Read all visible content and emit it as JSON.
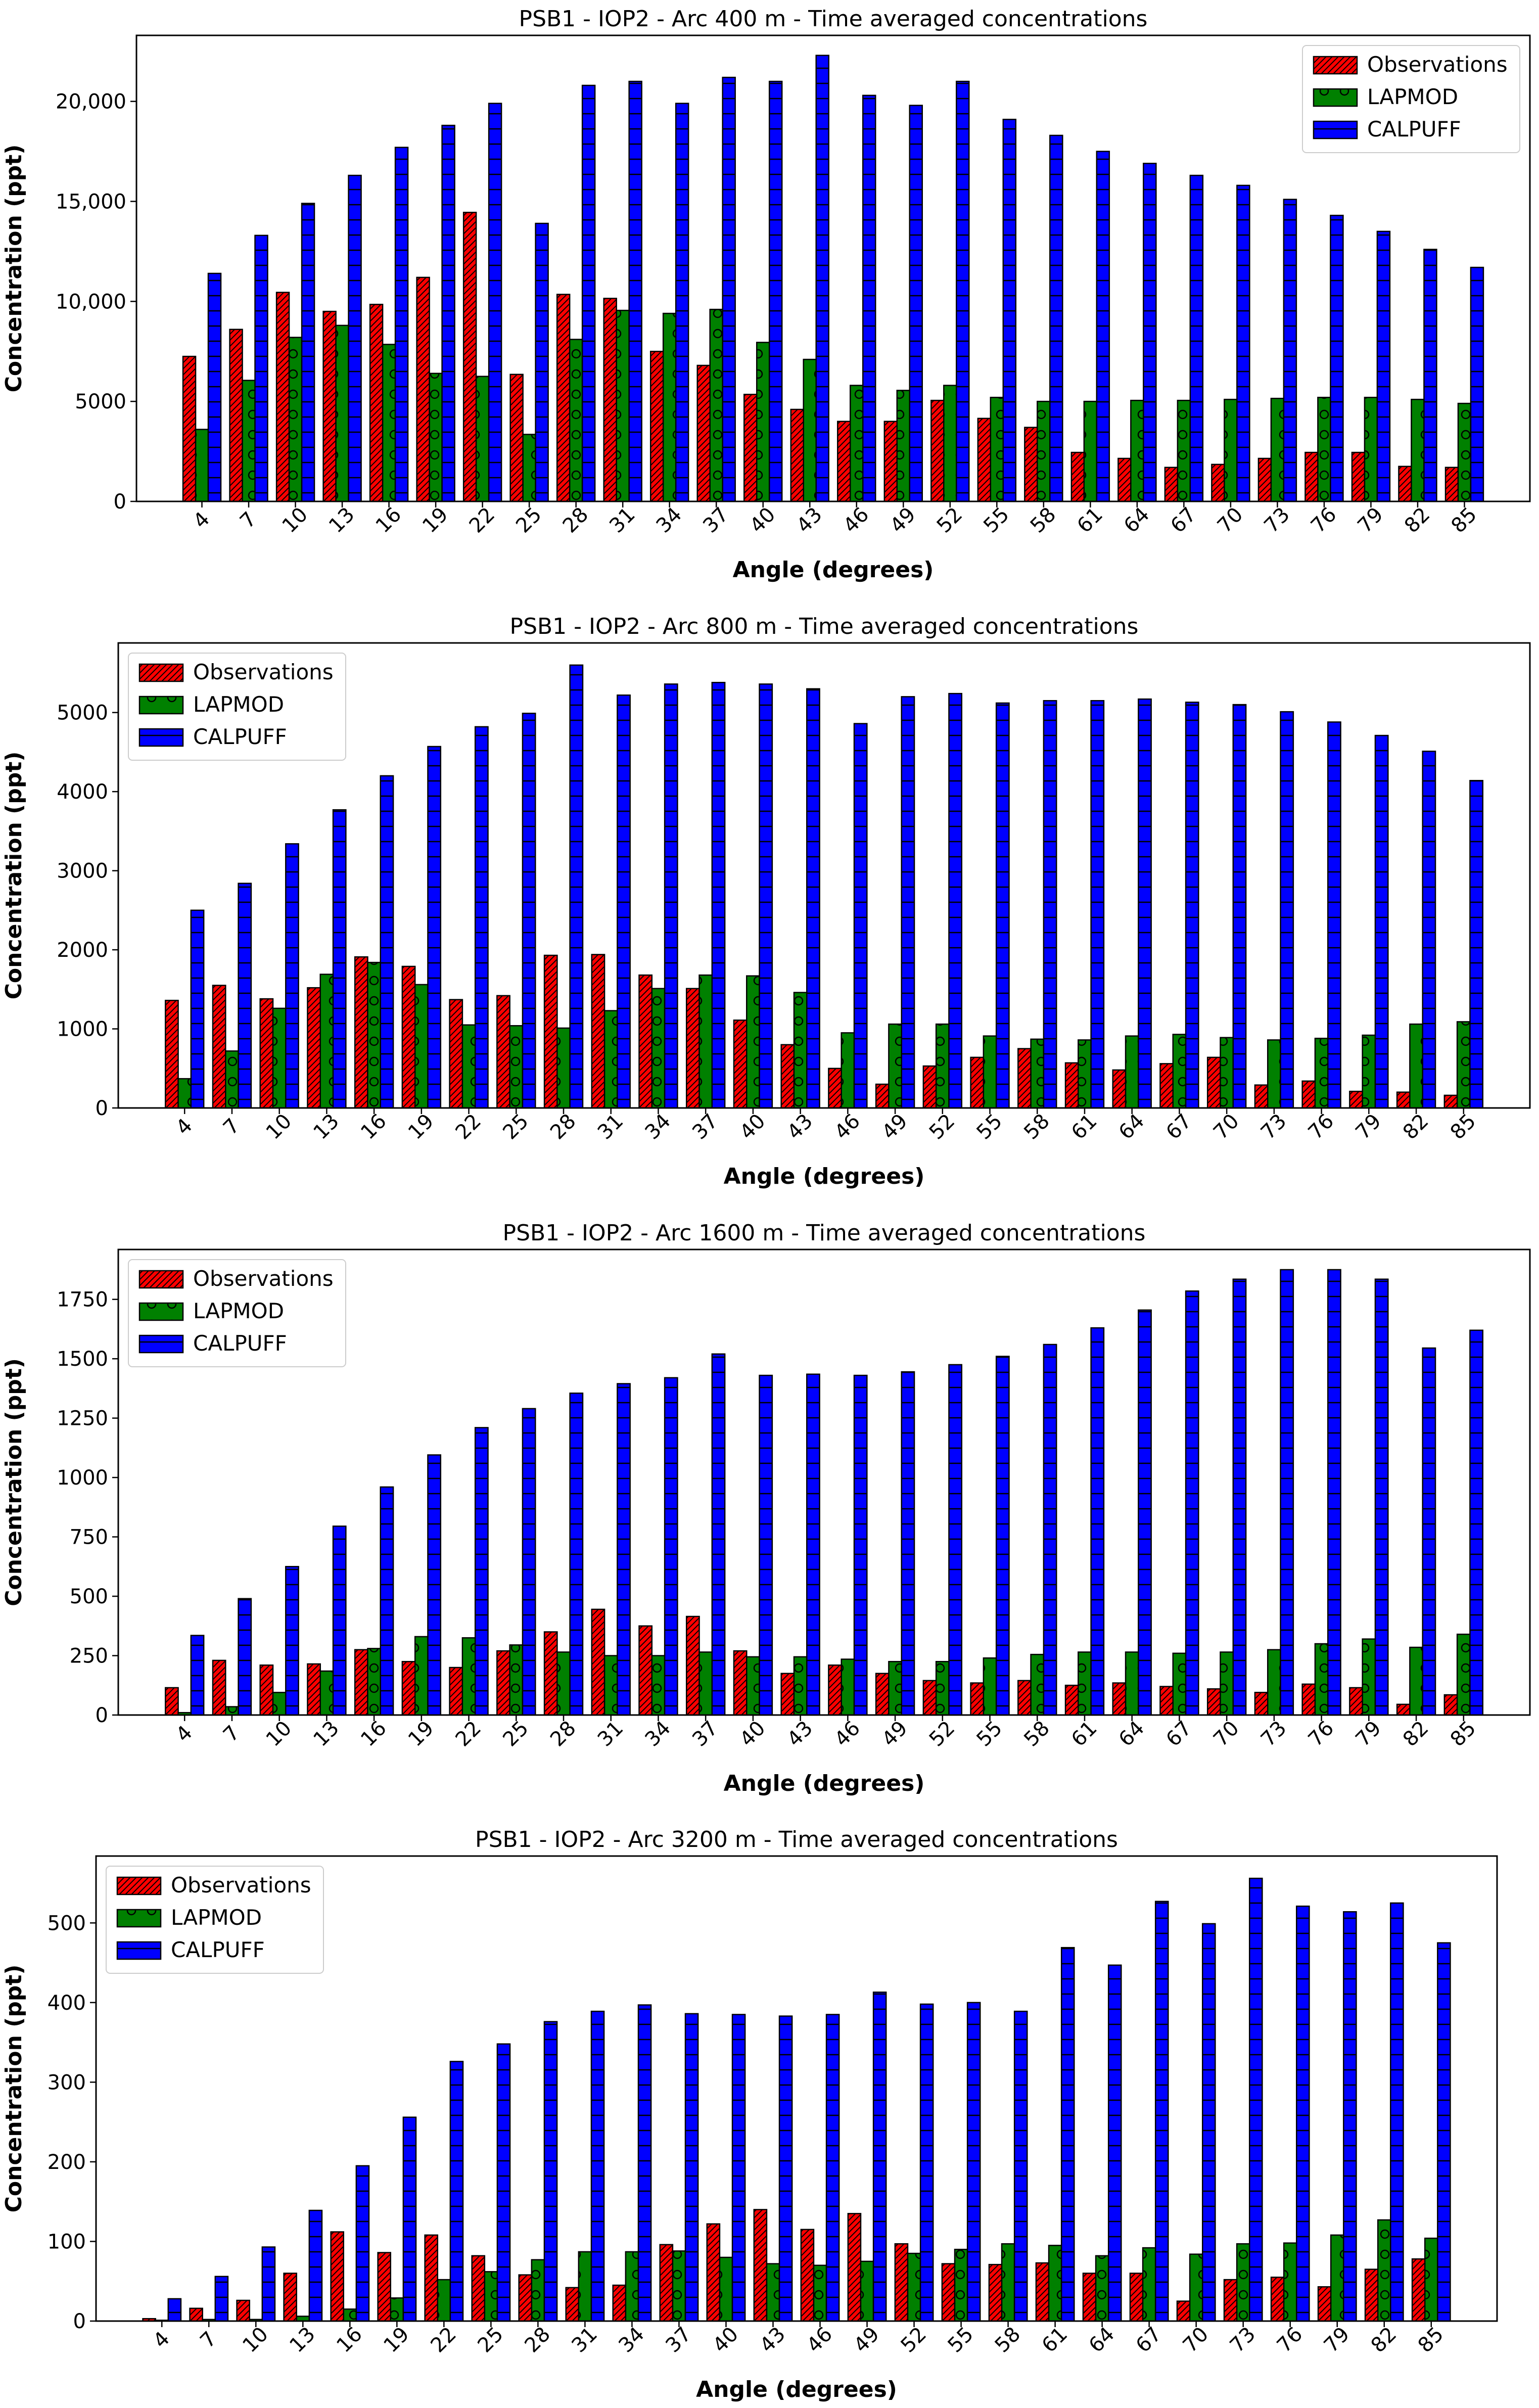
{
  "series_names": [
    "Observations",
    "LAPMOD",
    "CALPUFF"
  ],
  "colors": {
    "Observations": "#ff0000",
    "LAPMOD": "#008000",
    "CALPUFF": "#0000ff",
    "edge": "#000000"
  },
  "chart_data": [
    {
      "type": "bar",
      "title": "PSB1 - IOP2 - Arc 400 m - Time averaged concentrations",
      "xlabel": "Angle (degrees)",
      "ylabel": "Concentration (ppt)",
      "ylim": [
        0,
        23300
      ],
      "yticks": [
        0,
        5000,
        10000,
        15000,
        20000
      ],
      "ytick_labels": [
        "0",
        "5000",
        "10,000",
        "15,000",
        "20,000"
      ],
      "legend": "top-right",
      "categories": [
        "4",
        "7",
        "10",
        "13",
        "16",
        "19",
        "22",
        "25",
        "28",
        "31",
        "34",
        "37",
        "40",
        "43",
        "46",
        "49",
        "52",
        "55",
        "58",
        "61",
        "64",
        "67",
        "70",
        "73",
        "76",
        "79",
        "82",
        "85"
      ],
      "series": [
        {
          "name": "Observations",
          "values": [
            7250,
            8600,
            10450,
            9500,
            9850,
            11200,
            14450,
            6350,
            10350,
            10150,
            7500,
            6800,
            5350,
            4600,
            4000,
            4000,
            5050,
            4150,
            3700,
            2450,
            2150,
            1700,
            1850,
            2150,
            2450,
            2450,
            1750,
            1700
          ]
        },
        {
          "name": "LAPMOD",
          "values": [
            3600,
            6050,
            8200,
            8800,
            7850,
            6400,
            6250,
            3350,
            8100,
            9550,
            9400,
            9600,
            7950,
            7100,
            5800,
            5550,
            5800,
            5200,
            5000,
            5000,
            5050,
            5050,
            5100,
            5150,
            5200,
            5200,
            5100,
            4900
          ]
        },
        {
          "name": "CALPUFF",
          "values": [
            11400,
            13300,
            14900,
            16300,
            17700,
            18800,
            19900,
            13900,
            20800,
            21000,
            19900,
            21200,
            21000,
            22300,
            20300,
            19800,
            21000,
            19100,
            18300,
            17500,
            16900,
            16300,
            15800,
            15100,
            14300,
            13500,
            12600,
            11700
          ]
        }
      ]
    },
    {
      "type": "bar",
      "title": "PSB1 - IOP2 - Arc 800 m - Time averaged concentrations",
      "xlabel": "Angle (degrees)",
      "ylabel": "Concentration (ppt)",
      "ylim": [
        0,
        5880
      ],
      "yticks": [
        0,
        1000,
        2000,
        3000,
        4000,
        5000
      ],
      "ytick_labels": [
        "0",
        "1000",
        "2000",
        "3000",
        "4000",
        "5000"
      ],
      "legend": "top-left",
      "categories": [
        "4",
        "7",
        "10",
        "13",
        "16",
        "19",
        "22",
        "25",
        "28",
        "31",
        "34",
        "37",
        "40",
        "43",
        "46",
        "49",
        "52",
        "55",
        "58",
        "61",
        "64",
        "67",
        "70",
        "73",
        "76",
        "79",
        "82",
        "85"
      ],
      "series": [
        {
          "name": "Observations",
          "values": [
            1360,
            1550,
            1380,
            1520,
            1910,
            1790,
            1370,
            1420,
            1930,
            1940,
            1680,
            1510,
            1110,
            800,
            500,
            300,
            530,
            640,
            750,
            570,
            480,
            560,
            640,
            290,
            340,
            210,
            200,
            160
          ]
        },
        {
          "name": "LAPMOD",
          "values": [
            370,
            720,
            1260,
            1690,
            1840,
            1560,
            1050,
            1040,
            1010,
            1230,
            1510,
            1680,
            1670,
            1460,
            950,
            1060,
            1060,
            910,
            870,
            860,
            910,
            930,
            890,
            860,
            880,
            920,
            1060,
            1090
          ]
        },
        {
          "name": "CALPUFF",
          "values": [
            2500,
            2840,
            3340,
            3770,
            4200,
            4570,
            4820,
            4990,
            5600,
            5220,
            5360,
            5380,
            5360,
            5300,
            4860,
            5200,
            5240,
            5120,
            5150,
            5150,
            5170,
            5130,
            5100,
            5010,
            4880,
            4710,
            4510,
            4140
          ]
        }
      ]
    },
    {
      "type": "bar",
      "title": "PSB1 - IOP2 - Arc 1600 m - Time averaged concentrations",
      "xlabel": "Angle (degrees)",
      "ylabel": "Concentration (ppt)",
      "ylim": [
        0,
        1960
      ],
      "yticks": [
        0,
        250,
        500,
        750,
        1000,
        1250,
        1500,
        1750
      ],
      "ytick_labels": [
        "0",
        "250",
        "500",
        "750",
        "1000",
        "1250",
        "1500",
        "1750"
      ],
      "legend": "top-left",
      "categories": [
        "4",
        "7",
        "10",
        "13",
        "16",
        "19",
        "22",
        "25",
        "28",
        "31",
        "34",
        "37",
        "40",
        "43",
        "46",
        "49",
        "52",
        "55",
        "58",
        "61",
        "64",
        "67",
        "70",
        "73",
        "76",
        "79",
        "82",
        "85"
      ],
      "series": [
        {
          "name": "Observations",
          "values": [
            115,
            230,
            210,
            215,
            275,
            225,
            200,
            270,
            350,
            445,
            375,
            415,
            270,
            175,
            210,
            175,
            145,
            135,
            145,
            125,
            135,
            120,
            110,
            95,
            130,
            115,
            45,
            85
          ]
        },
        {
          "name": "LAPMOD",
          "values": [
            10,
            35,
            95,
            185,
            280,
            330,
            325,
            295,
            265,
            250,
            250,
            265,
            245,
            245,
            235,
            225,
            225,
            240,
            255,
            265,
            265,
            260,
            265,
            275,
            300,
            320,
            285,
            340
          ]
        },
        {
          "name": "CALPUFF",
          "values": [
            335,
            490,
            625,
            795,
            960,
            1095,
            1210,
            1290,
            1355,
            1395,
            1420,
            1520,
            1430,
            1435,
            1430,
            1445,
            1475,
            1510,
            1560,
            1630,
            1705,
            1785,
            1835,
            1875,
            1875,
            1835,
            1545,
            1620
          ]
        }
      ]
    },
    {
      "type": "bar",
      "title": "PSB1 - IOP2 - Arc 3200 m - Time averaged concentrations",
      "xlabel": "Angle (degrees)",
      "ylabel": "Concentration (ppt)",
      "ylim": [
        0,
        584
      ],
      "yticks": [
        0,
        100,
        200,
        300,
        400,
        500
      ],
      "ytick_labels": [
        "0",
        "100",
        "200",
        "300",
        "400",
        "500"
      ],
      "legend": "top-left",
      "categories": [
        "4",
        "7",
        "10",
        "13",
        "16",
        "19",
        "22",
        "25",
        "28",
        "31",
        "34",
        "37",
        "40",
        "43",
        "46",
        "49",
        "52",
        "55",
        "58",
        "61",
        "64",
        "67",
        "70",
        "73",
        "76",
        "79",
        "82",
        "85"
      ],
      "series": [
        {
          "name": "Observations",
          "values": [
            3,
            16,
            26,
            60,
            112,
            86,
            108,
            82,
            58,
            42,
            45,
            96,
            122,
            140,
            115,
            135,
            97,
            72,
            71,
            73,
            60,
            60,
            25,
            52,
            55,
            43,
            65,
            78
          ]
        },
        {
          "name": "LAPMOD",
          "values": [
            1,
            2,
            2,
            6,
            15,
            29,
            52,
            62,
            77,
            87,
            87,
            88,
            80,
            72,
            70,
            75,
            85,
            90,
            97,
            95,
            82,
            92,
            84,
            97,
            98,
            108,
            127,
            104
          ]
        },
        {
          "name": "CALPUFF",
          "values": [
            28,
            56,
            93,
            139,
            195,
            256,
            326,
            348,
            376,
            389,
            397,
            386,
            385,
            383,
            385,
            413,
            398,
            400,
            389,
            469,
            447,
            527,
            499,
            556,
            521,
            514,
            525,
            475
          ]
        }
      ]
    }
  ]
}
